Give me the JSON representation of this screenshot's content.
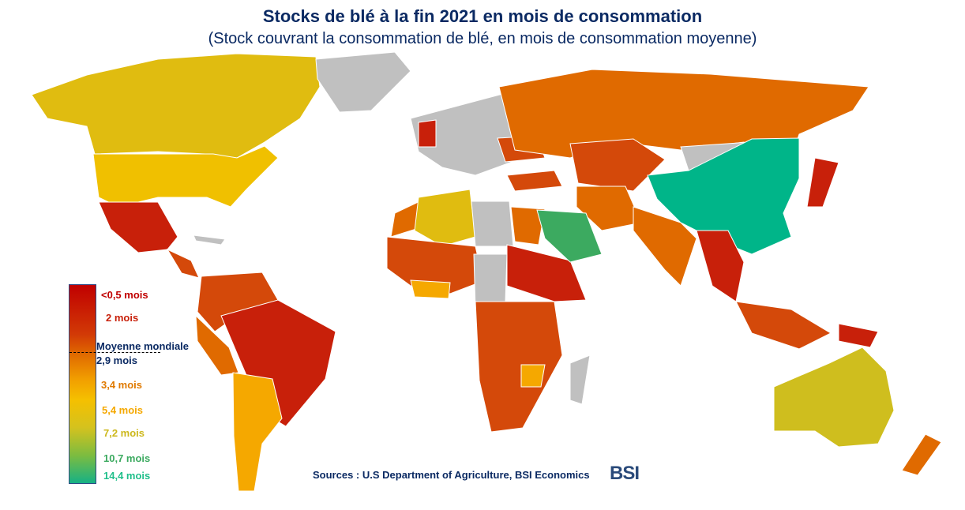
{
  "header": {
    "title": "Stocks de blé à la fin 2021 en mois de consommation",
    "subtitle": "(Stock couvrant la consommation de blé, en mois de consommation moyenne)"
  },
  "legend": {
    "labels": [
      "<0,5 mois",
      "2 mois",
      "Moyenne mondiale",
      "2,9 mois",
      "3,4 mois",
      "5,4 mois",
      "7,2 mois",
      "10,7 mois",
      "14,4 mois"
    ],
    "colors": [
      "#c00000",
      "#c8200a",
      "#0b2a63",
      "#0b2a63",
      "#e07a00",
      "#f5a800",
      "#cdb81c",
      "#3caa60",
      "#1fbf8a"
    ]
  },
  "footer": {
    "source": "Sources : U.S Department of Agriculture, BSI Economics",
    "logo": "BSI"
  },
  "palette": {
    "red": "#c8200a",
    "darkorange": "#d4490a",
    "orange": "#e06a00",
    "amber": "#f5a800",
    "yellow": "#e0bc10",
    "olive": "#cfbe1e",
    "green": "#3caa60",
    "teal": "#00b589",
    "nodata": "#c0c0c0"
  }
}
